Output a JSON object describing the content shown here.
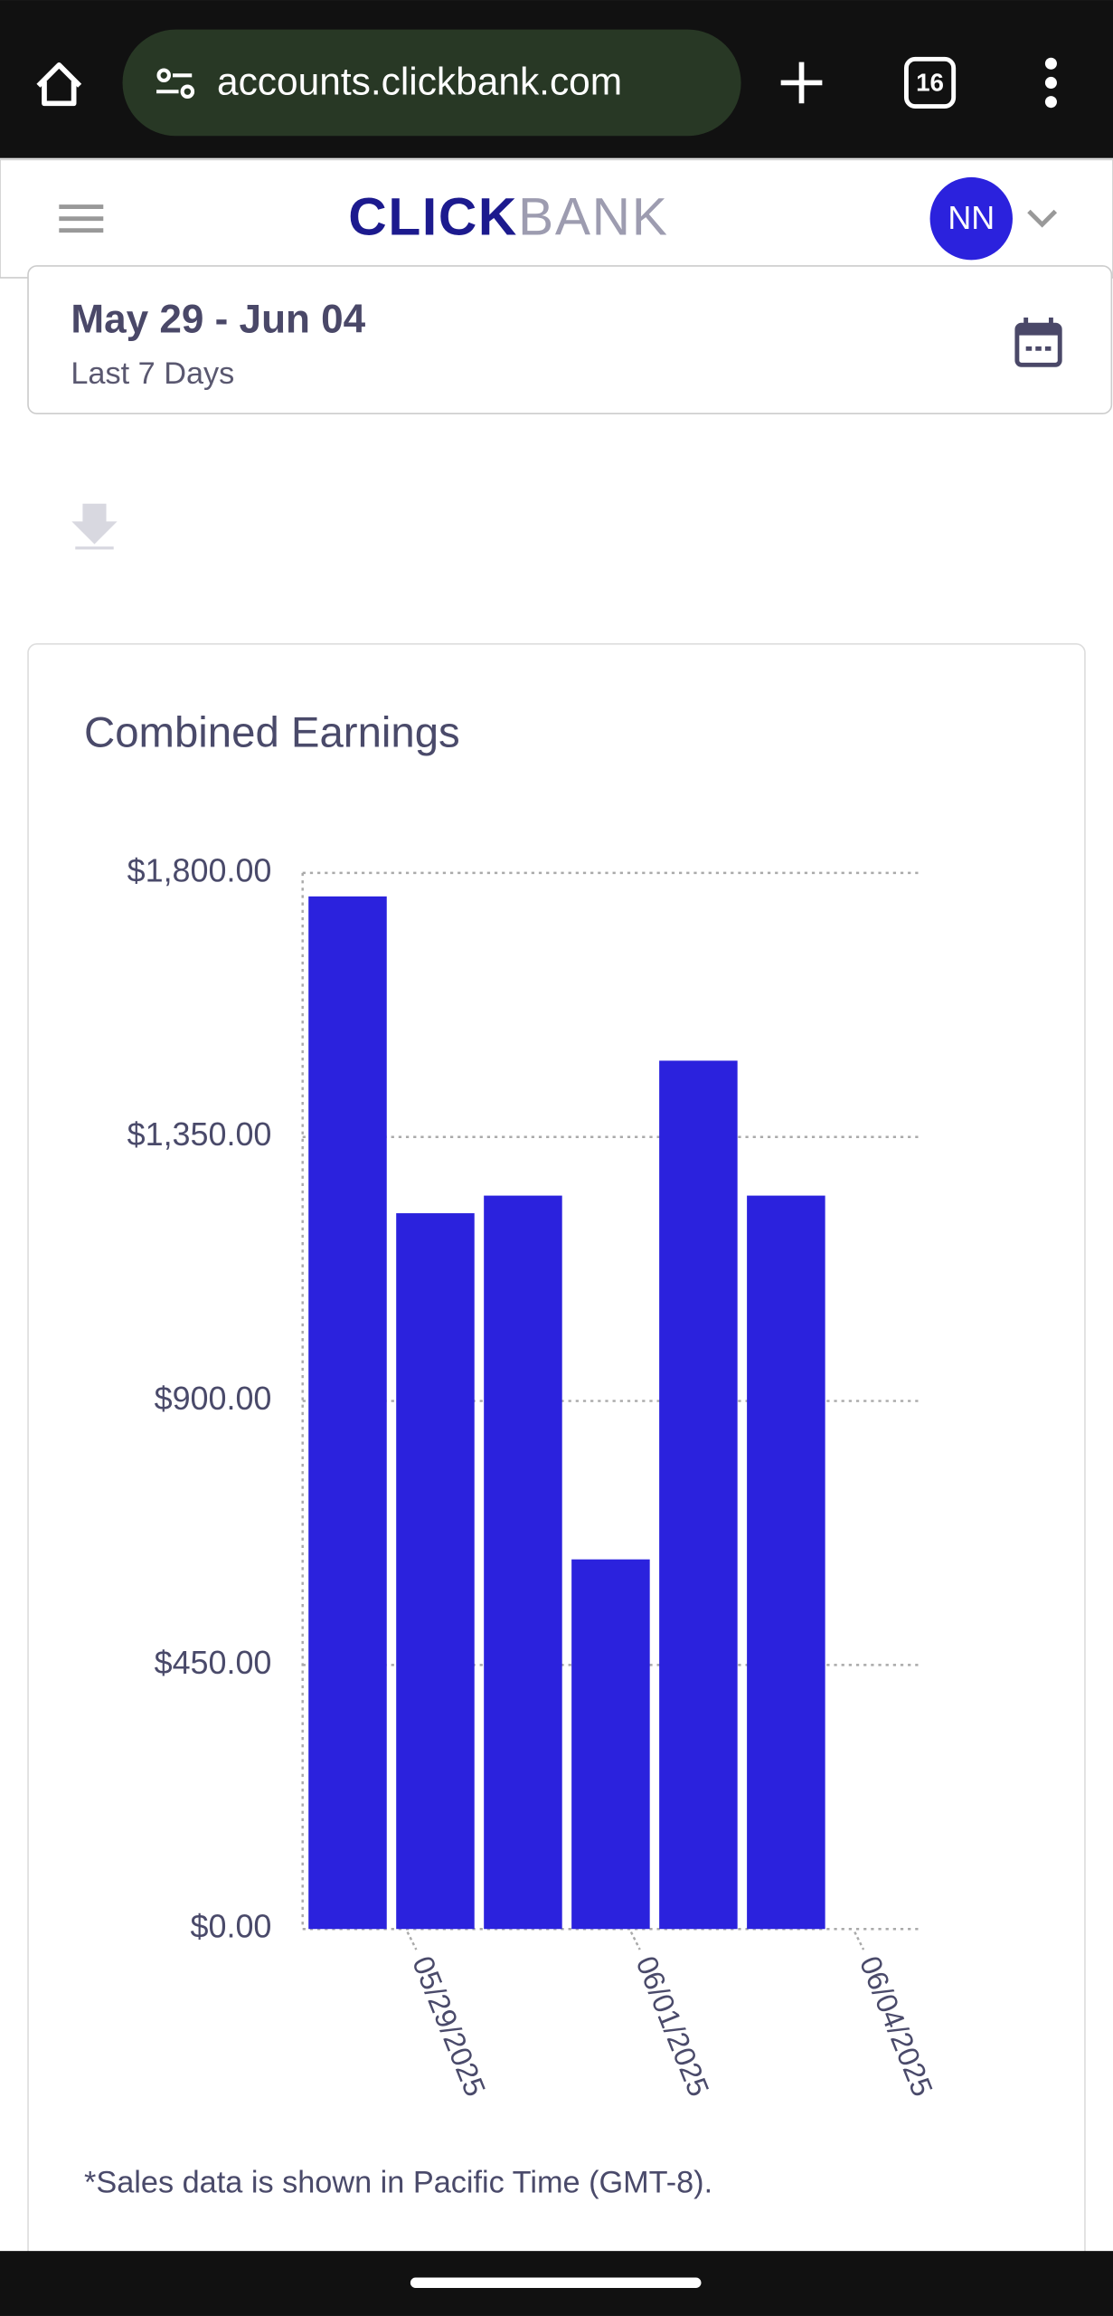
{
  "browser": {
    "url": "accounts.clickbank.com",
    "tab_count": "16"
  },
  "header": {
    "logo_primary": "CLICK",
    "logo_secondary": "BANK",
    "avatar": "NN"
  },
  "date_range": {
    "title": "May 29 - Jun 04",
    "subtitle": "Last 7 Days"
  },
  "chart_data": {
    "type": "bar",
    "title": "Combined Earnings",
    "categories": [
      null,
      null,
      null,
      null,
      null,
      null
    ],
    "values": [
      1760,
      1220,
      1250,
      630,
      1480,
      1250
    ],
    "color": "#2b22dd",
    "xticks": [
      "05/29/2025",
      "06/01/2025",
      "06/04/2025"
    ],
    "ylim": [
      0,
      1800
    ],
    "yticks": [
      {
        "value": 0,
        "label": "$0.00"
      },
      {
        "value": 450,
        "label": "$450.00"
      },
      {
        "value": 900,
        "label": "$900.00"
      },
      {
        "value": 1350,
        "label": "$1,350.00"
      },
      {
        "value": 1800,
        "label": "$1,800.00"
      }
    ],
    "grid": true
  },
  "footnote": "*Sales data is shown in Pacific Time (GMT-8)."
}
